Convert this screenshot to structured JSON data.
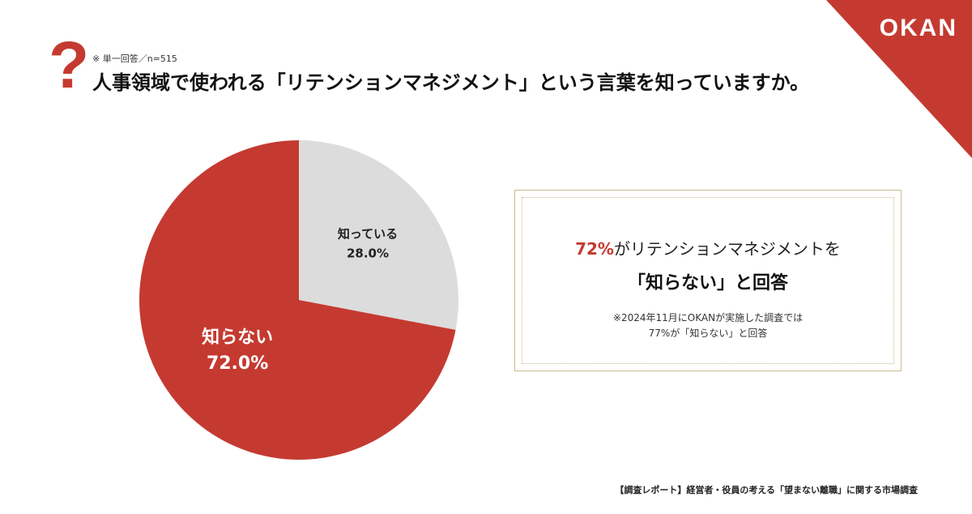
{
  "brand": {
    "logo_text": "OKAN",
    "accent_color": "#c53a30"
  },
  "header": {
    "note": "※ 単一回答／n=515",
    "title": "人事領域で使われる「リテンションマネジメント」という言葉を知っていますか。"
  },
  "chart_data": {
    "type": "pie",
    "title": "人事領域で使われる「リテンションマネジメント」という言葉を知っていますか。",
    "slices": [
      {
        "label": "知っている",
        "value": 28.0,
        "value_label": "28.0%",
        "color": "#dcdcdc"
      },
      {
        "label": "知らない",
        "value": 72.0,
        "value_label": "72.0%",
        "color": "#c53a30"
      }
    ]
  },
  "callout": {
    "highlight": "72%",
    "line1_rest": "がリテンションマネジメントを",
    "line2": "「知らない」と回答",
    "note_line1": "※2024年11月にOKANが実施した調査では",
    "note_line2": "77%が「知らない」と回答"
  },
  "footer": {
    "text": "【調査レポート】経営者・役員の考える「望まない離職」に関する市場調査"
  }
}
